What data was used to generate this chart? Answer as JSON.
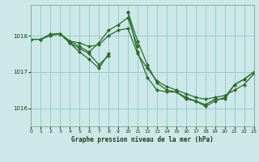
{
  "title": "Graphe pression niveau de la mer (hPa)",
  "bg_color": "#cce8e8",
  "grid_color": "#99cccc",
  "line_color": "#2d6b2d",
  "marker_color": "#2d6b2d",
  "ylim": [
    1015.5,
    1018.85
  ],
  "yticks": [
    1016,
    1017,
    1018
  ],
  "xlim": [
    0,
    23
  ],
  "xticks": [
    0,
    1,
    2,
    3,
    4,
    5,
    6,
    7,
    8,
    9,
    10,
    11,
    12,
    13,
    14,
    15,
    16,
    17,
    18,
    19,
    20,
    21,
    22,
    23
  ],
  "series": [
    [
      1017.9,
      1017.9,
      1018.0,
      1018.05,
      1017.85,
      1017.8,
      1017.7,
      1017.75,
      1018.0,
      1018.15,
      1018.2,
      1017.5,
      1017.1,
      1016.75,
      1016.6,
      1016.5,
      1016.4,
      1016.3,
      1016.25,
      1016.3,
      1016.35,
      1016.5,
      1016.65,
      1016.95
    ],
    [
      1017.9,
      1017.9,
      1018.05,
      1018.05,
      1017.85,
      1017.7,
      1017.55,
      1017.8,
      1018.15,
      1018.3,
      1018.5,
      1017.7,
      null,
      null,
      null,
      null,
      null,
      null,
      null,
      null,
      null,
      null,
      null,
      null
    ],
    [
      1017.9,
      null,
      null,
      1018.05,
      1017.8,
      1017.65,
      1017.5,
      1017.2,
      1017.45,
      null,
      1018.65,
      1017.85,
      1017.2,
      1016.7,
      1016.5,
      1016.45,
      1016.3,
      1016.2,
      1016.1,
      1016.25,
      1016.25,
      1016.65,
      1016.8,
      1017.0
    ],
    [
      1017.9,
      null,
      null,
      1018.05,
      1017.8,
      1017.55,
      1017.35,
      1017.1,
      1017.5,
      null,
      1018.65,
      1017.55,
      1016.85,
      1016.5,
      1016.45,
      1016.45,
      1016.25,
      1016.2,
      1016.05,
      1016.2,
      1016.3,
      1016.65,
      1016.8,
      1017.0
    ]
  ]
}
